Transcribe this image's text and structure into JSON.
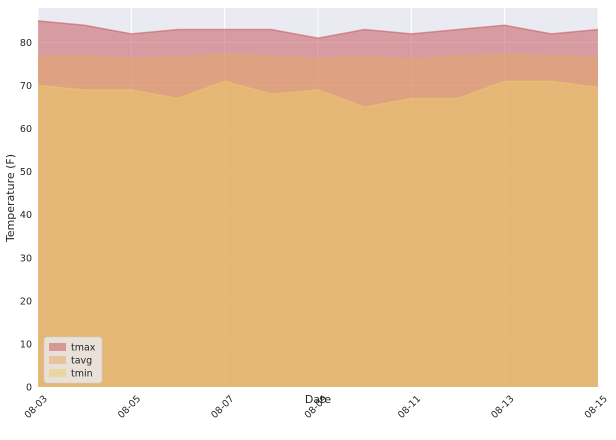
{
  "chart_data": {
    "type": "area",
    "stacked": false,
    "title": "",
    "xlabel": "Date",
    "ylabel": "Temperature (F)",
    "x": [
      "08-03",
      "08-04",
      "08-05",
      "08-06",
      "08-07",
      "08-08",
      "08-09",
      "08-10",
      "08-11",
      "08-12",
      "08-13",
      "08-14",
      "08-15"
    ],
    "x_tick_labels": [
      "08-03",
      "08-05",
      "08-07",
      "08-09",
      "08-11",
      "08-13",
      "08-15"
    ],
    "ylim": [
      0,
      88
    ],
    "y_ticks": [
      0,
      10,
      20,
      30,
      40,
      50,
      60,
      70,
      80
    ],
    "grid": true,
    "legend_position": "lower-left",
    "series": [
      {
        "name": "tmax",
        "color": "#c44e52",
        "values": [
          85,
          84,
          82,
          83,
          83,
          83,
          81,
          83,
          82,
          83,
          84,
          82,
          83
        ]
      },
      {
        "name": "tavg",
        "color": "#e5a862",
        "values": [
          76.7,
          76.9,
          76.3,
          76.6,
          77.3,
          76.8,
          76.2,
          76.7,
          76.1,
          76.8,
          77.2,
          76.9,
          76.6
        ]
      },
      {
        "name": "tmin",
        "color": "#ebcb6a",
        "values": [
          70,
          69,
          69,
          67,
          71,
          68,
          69,
          65,
          67,
          67,
          71,
          71,
          69.5
        ]
      }
    ]
  }
}
